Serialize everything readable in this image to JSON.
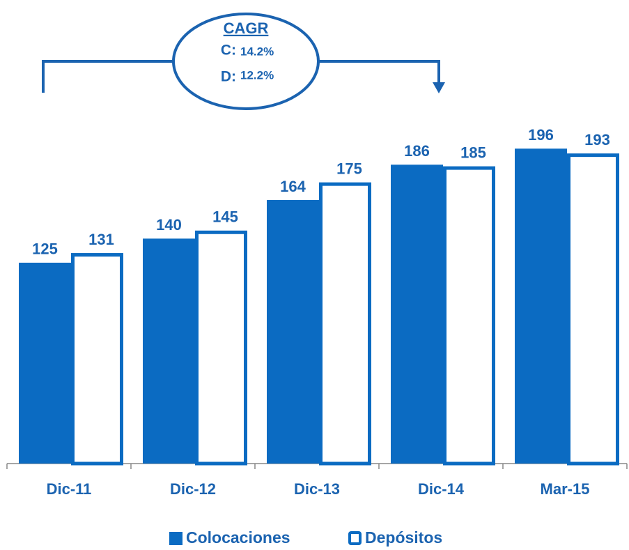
{
  "chart_data": {
    "type": "bar",
    "categories": [
      "Dic-11",
      "Dic-12",
      "Dic-13",
      "Dic-14",
      "Mar-15"
    ],
    "series": [
      {
        "name": "Colocaciones",
        "color": "#0b6bc2",
        "style": "filled",
        "values": [
          125,
          140,
          164,
          186,
          196
        ]
      },
      {
        "name": "Depósitos",
        "color": "#0b6bc2",
        "style": "outlined",
        "values": [
          131,
          145,
          175,
          185,
          193
        ]
      }
    ],
    "ylim": [
      0,
      200
    ],
    "annotation": {
      "title": "CAGR",
      "lines": [
        {
          "label": "C:",
          "value": "14.2%"
        },
        {
          "label": "D:",
          "value": "12.2%"
        }
      ]
    },
    "legend": "bottom"
  }
}
